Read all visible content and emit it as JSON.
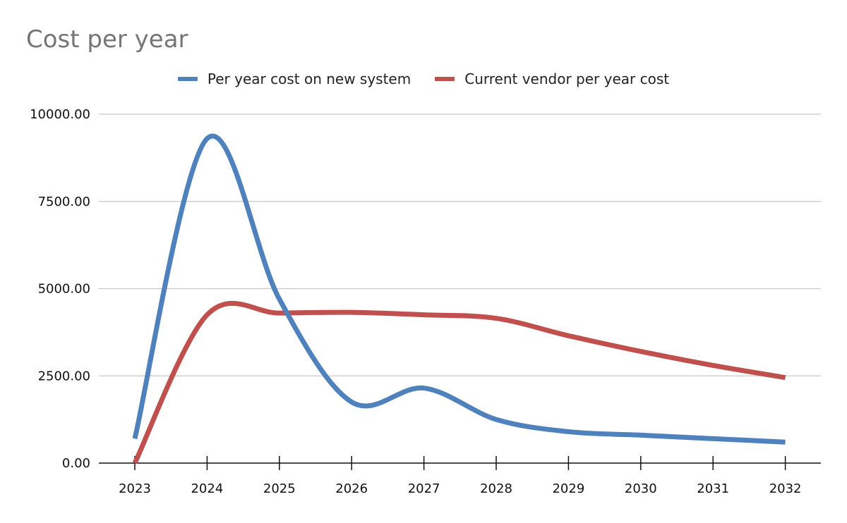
{
  "chart_data": {
    "type": "line",
    "title": "Cost per year",
    "categories": [
      "2023",
      "2024",
      "2025",
      "2026",
      "2027",
      "2028",
      "2029",
      "2030",
      "2031",
      "2032"
    ],
    "series": [
      {
        "name": "Per year cost on new system",
        "color": "#4f81bd",
        "values": [
          700,
          9300,
          4700,
          1750,
          2150,
          1250,
          900,
          800,
          700,
          600
        ]
      },
      {
        "name": "Current vendor per year cost",
        "color": "#c0504d",
        "values": [
          0,
          4250,
          4300,
          4320,
          4250,
          4150,
          3650,
          3200,
          2800,
          2450
        ]
      }
    ],
    "ylim": [
      0,
      10000
    ],
    "yticks": [
      "0.00",
      "2500.00",
      "5000.00",
      "7500.00",
      "10000.00"
    ],
    "ytick_values": [
      0,
      2500,
      5000,
      7500,
      10000
    ],
    "grid": true,
    "legend_position": "top-center",
    "smooth": true
  }
}
